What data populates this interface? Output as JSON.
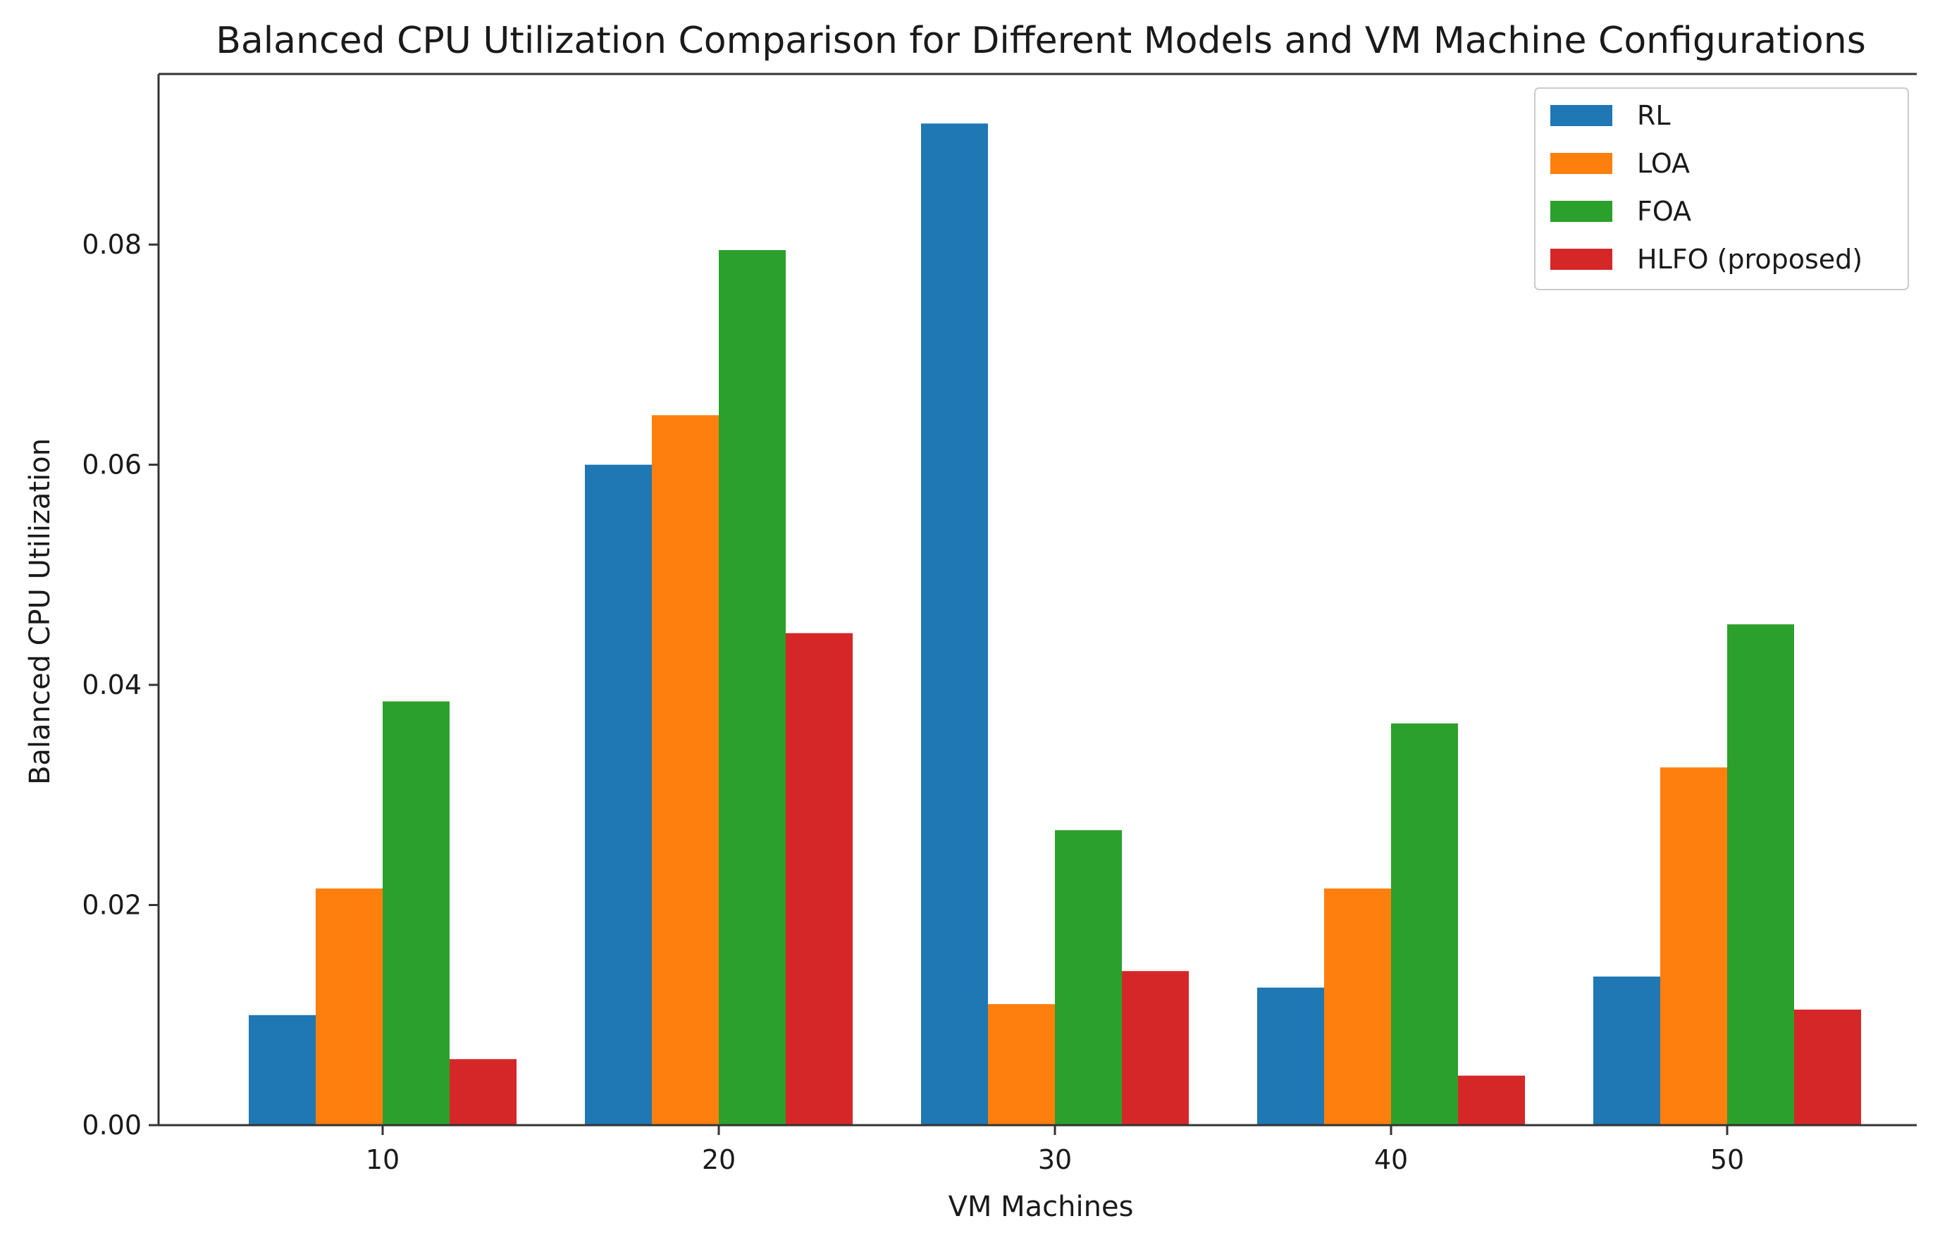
{
  "chart_data": {
    "type": "bar",
    "title": "Balanced CPU Utilization Comparison for Different Models and VM Machine Configurations",
    "xlabel": "VM Machines",
    "ylabel": "Balanced CPU Utilization",
    "categories": [
      "10",
      "20",
      "30",
      "40",
      "50"
    ],
    "ylim": [
      0,
      0.0955
    ],
    "yticks": [
      0.0,
      0.02,
      0.04,
      0.06,
      0.08
    ],
    "ytick_labels": [
      "0.00",
      "0.02",
      "0.04",
      "0.06",
      "0.08"
    ],
    "grid": false,
    "legend_position": "top-right",
    "series": [
      {
        "name": "RL",
        "color": "#1f77b4",
        "values": [
          0.01,
          0.06,
          0.091,
          0.0125,
          0.0135
        ]
      },
      {
        "name": "LOA",
        "color": "#ff7f0e",
        "values": [
          0.0215,
          0.0645,
          0.011,
          0.0215,
          0.0325
        ]
      },
      {
        "name": "FOA",
        "color": "#2ca02c",
        "values": [
          0.0385,
          0.0795,
          0.0268,
          0.0365,
          0.0455
        ]
      },
      {
        "name": "HLFO (proposed)",
        "color": "#d62728",
        "values": [
          0.006,
          0.0447,
          0.014,
          0.0045,
          0.0105
        ]
      }
    ]
  }
}
